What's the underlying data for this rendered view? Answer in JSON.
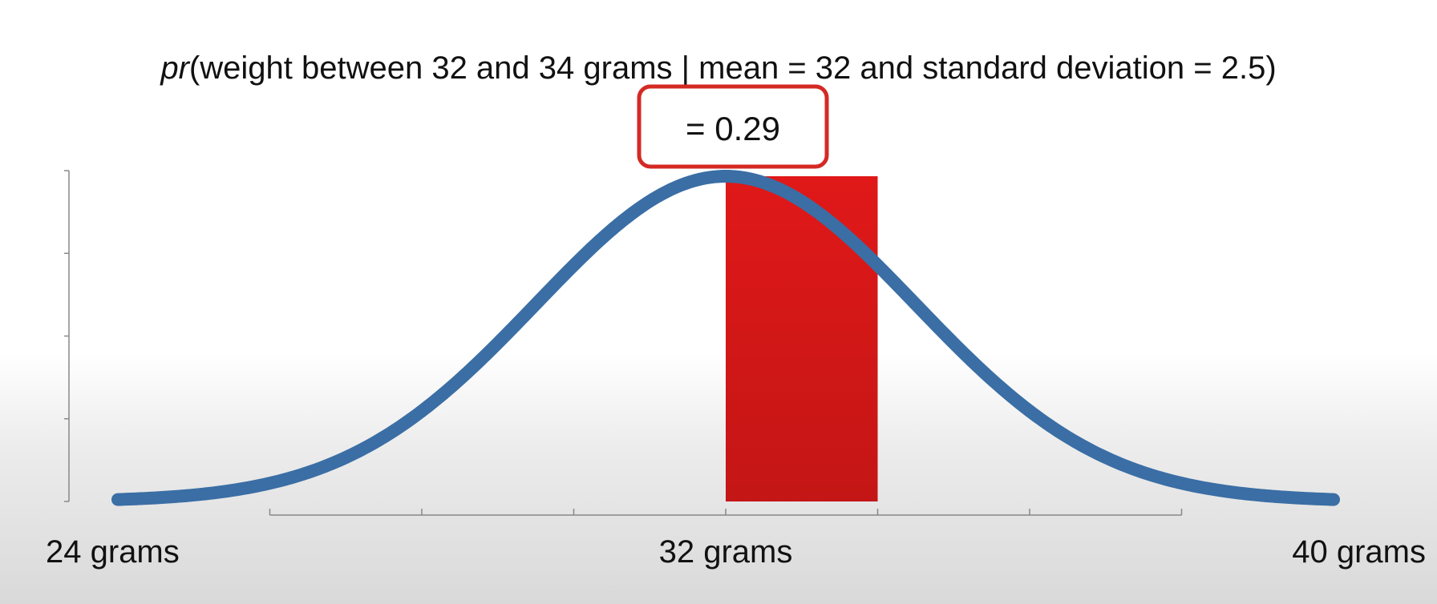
{
  "chart_data": {
    "type": "line",
    "title": {
      "prefix": "pr",
      "rest": "(weight between 32 and 34 grams | mean = 32 and standard deviation = 2.5)"
    },
    "result": "= 0.29",
    "distribution": {
      "kind": "normal",
      "mean": 32,
      "sd": 2.5
    },
    "shaded_interval": [
      32,
      34
    ],
    "probability": 0.29,
    "xlim": [
      24,
      40
    ],
    "x_ticks": [
      26,
      28,
      30,
      32,
      34,
      36,
      38
    ],
    "x_tick_labels": [
      {
        "x": 24,
        "label": "24 grams"
      },
      {
        "x": 32,
        "label": "32 grams"
      },
      {
        "x": 40,
        "label": "40 grams"
      }
    ],
    "y_tick_count": 5,
    "colors": {
      "curve": "#3a6ea5",
      "shade": "#dc1a1a",
      "box_border": "#d42a24",
      "axis": "#888888"
    }
  }
}
